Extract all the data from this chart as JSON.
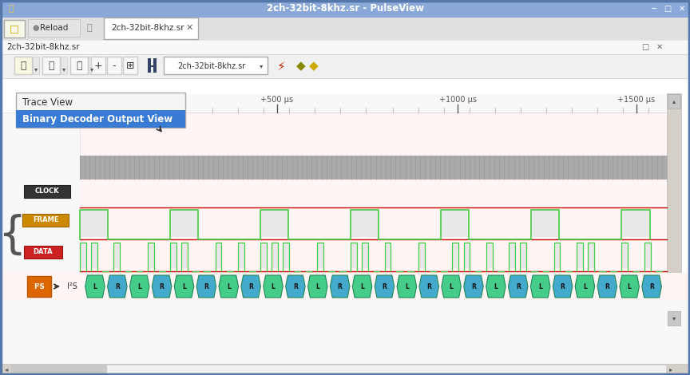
{
  "title": "2ch-32bit-8khz.sr - PulseView",
  "tab_text": "2ch-32bit-8khz.sr",
  "filename": "2ch-32bit-8khz.sr",
  "window_bg": "#d4d0c8",
  "titlebar_color": "#8aa8d8",
  "menu_bg": "#f5f5f5",
  "menu_item": "Trace View",
  "menu_item_selected": "Binary Decoder Output View",
  "menu_selected_bg": "#3a7bd5",
  "menu_selected_fg": "#ffffff",
  "time_labels": [
    "+500 µs",
    "+1000 µs",
    "+1500 µs"
  ],
  "time_label_xpx": [
    347,
    573,
    797
  ],
  "channel_labels": [
    "CLOCK",
    "FRAME",
    "DATA"
  ],
  "signal_area_bg": "#fff5f5",
  "inner_bg": "#ffffff",
  "gray_bar_color": "#aaaaaa",
  "clock_signal_color": "#e0e0e0",
  "red_line_color": "#cc0000",
  "green_line_color": "#44cc44",
  "frame_pulse_fill": "#e8e8e8",
  "data_pulse_fill": "#e8e8e8",
  "decode_L_color": "#44cc88",
  "decode_R_color": "#44aacc",
  "decode_text_color": "#111111",
  "decode_edge_color": "#228855",
  "i2s_label_bg": "#dd6600",
  "clock_label_bg": "#333333",
  "frame_label_bg": "#cc8800",
  "data_label_bg": "#cc2222",
  "scrollbar_bg": "#d4d0c8",
  "scrollbar_track": "#f0f0f0",
  "tab_bar_bg": "#e0e0e0",
  "toolbar_bg": "#f0f0f0",
  "content_bg": "#ffffff",
  "decode_labels": [
    "L",
    "R",
    "L",
    "R",
    "L",
    "R",
    "L",
    "R",
    "L",
    "R",
    "L",
    "R",
    "L",
    "R",
    "L",
    "R",
    "L",
    "R",
    "L",
    "R",
    "L",
    "R",
    "L",
    "R",
    "L",
    "R"
  ]
}
